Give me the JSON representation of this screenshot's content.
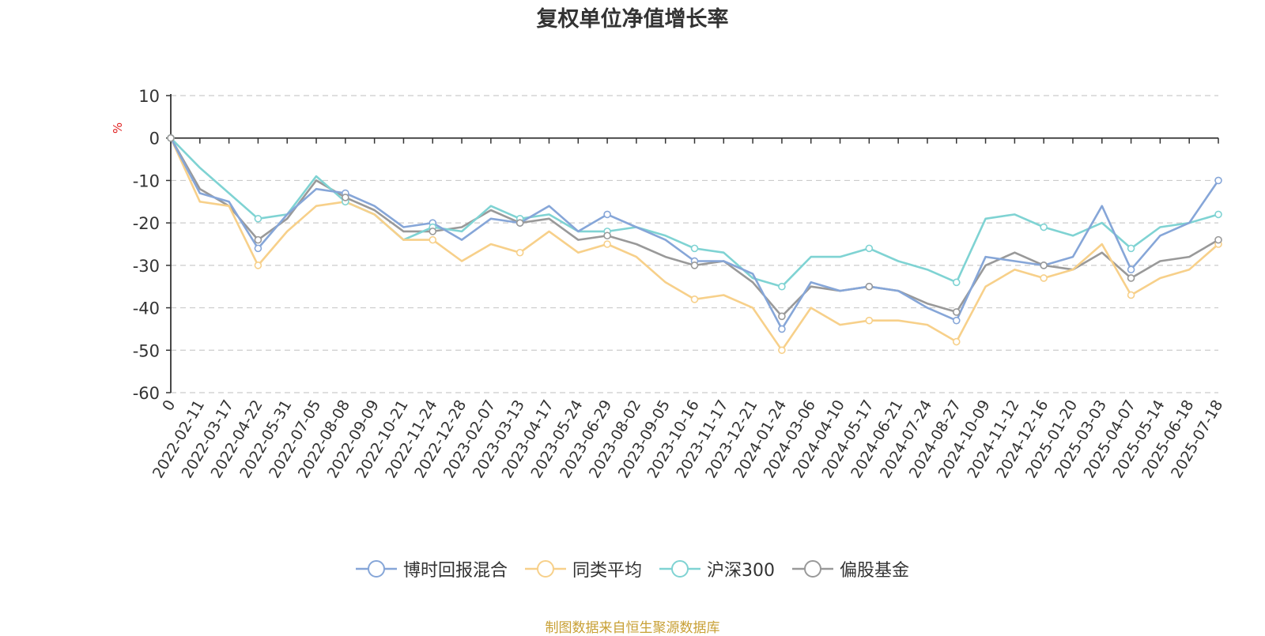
{
  "chart_data": {
    "type": "line",
    "title": "复权单位净值增长率",
    "ylabel": "%",
    "ylim": [
      -60,
      10
    ],
    "yticks": [
      10,
      0,
      -10,
      -20,
      -30,
      -40,
      -50,
      -60
    ],
    "grid": true,
    "legend_position": "bottom",
    "x": [
      "0",
      "2022-02-11",
      "2022-03-17",
      "2022-04-22",
      "2022-05-31",
      "2022-07-05",
      "2022-08-08",
      "2022-09-09",
      "2022-10-21",
      "2022-11-24",
      "2022-12-28",
      "2023-02-07",
      "2023-03-13",
      "2023-04-17",
      "2023-05-24",
      "2023-06-29",
      "2023-08-02",
      "2023-09-05",
      "2023-10-16",
      "2023-11-17",
      "2023-12-21",
      "2024-01-24",
      "2024-03-06",
      "2024-04-10",
      "2024-05-17",
      "2024-06-21",
      "2024-07-24",
      "2024-08-27",
      "2024-10-09",
      "2024-11-12",
      "2024-12-16",
      "2025-01-20",
      "2025-03-03",
      "2025-04-07",
      "2025-05-14",
      "2025-06-18",
      "2025-07-18"
    ],
    "series": [
      {
        "name": "博时回报混合",
        "color": "#86a6d8",
        "values": [
          0,
          -13,
          -15,
          -26,
          -18,
          -12,
          -13,
          -16,
          -21,
          -20,
          -24,
          -19,
          -20,
          -16,
          -22,
          -18,
          -21,
          -24,
          -29,
          -29,
          -32,
          -45,
          -34,
          -36,
          -35,
          -36,
          -40,
          -43,
          -28,
          -29,
          -30,
          -28,
          -16,
          -31,
          -23,
          -20,
          -10
        ]
      },
      {
        "name": "同类平均",
        "color": "#f7d08a",
        "values": [
          0,
          -15,
          -16,
          -30,
          -22,
          -16,
          -15,
          -18,
          -24,
          -24,
          -29,
          -25,
          -27,
          -22,
          -27,
          -25,
          -28,
          -34,
          -38,
          -37,
          -40,
          -50,
          -40,
          -44,
          -43,
          -43,
          -44,
          -48,
          -35,
          -31,
          -33,
          -31,
          -25,
          -37,
          -33,
          -31,
          -25
        ]
      },
      {
        "name": "沪深300",
        "color": "#7fd3d3",
        "values": [
          0,
          -7,
          -13,
          -19,
          -18,
          -9,
          -15,
          -18,
          -24,
          -21,
          -22,
          -16,
          -19,
          -18,
          -22,
          -22,
          -21,
          -23,
          -26,
          -27,
          -33,
          -35,
          -28,
          -28,
          -26,
          -29,
          -31,
          -34,
          -19,
          -18,
          -21,
          -23,
          -20,
          -26,
          -21,
          -20,
          -18
        ]
      },
      {
        "name": "偏股基金",
        "color": "#999999",
        "values": [
          0,
          -12,
          -16,
          -24,
          -19,
          -10,
          -14,
          -17,
          -22,
          -22,
          -21,
          -17,
          -20,
          -19,
          -24,
          -23,
          -25,
          -28,
          -30,
          -29,
          -34,
          -42,
          -35,
          -36,
          -35,
          -36,
          -39,
          -41,
          -30,
          -27,
          -30,
          -31,
          -27,
          -33,
          -29,
          -28,
          -24
        ]
      }
    ]
  },
  "source_note": "制图数据来自恒生聚源数据库"
}
